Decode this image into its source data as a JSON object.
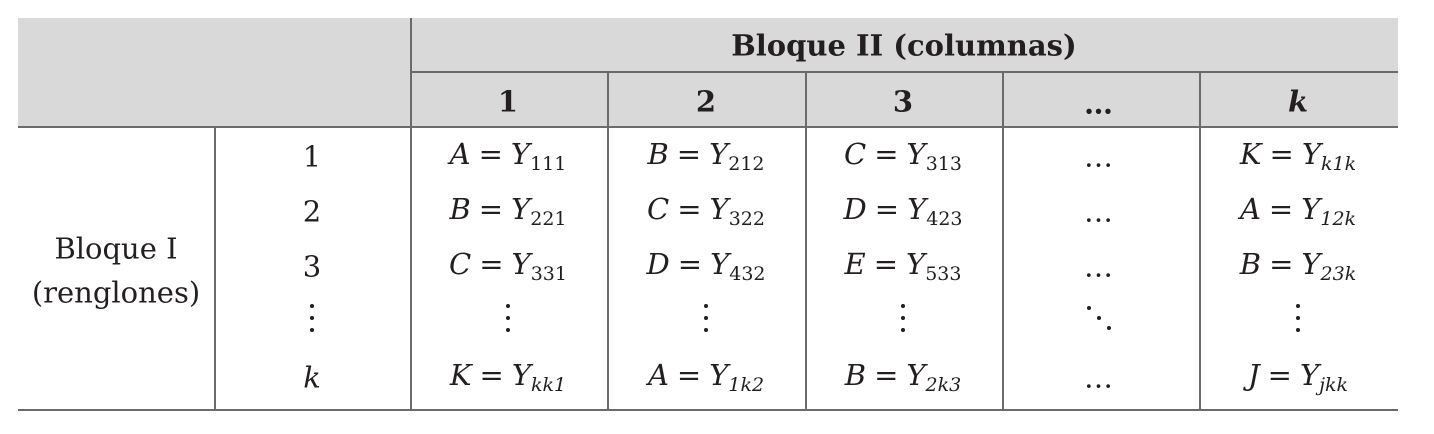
{
  "table": {
    "col_group_header": "Bloque II (columnas)",
    "row_group_header_line1": "Bloque I",
    "row_group_header_line2": "(renglones)",
    "col_headers": [
      "1",
      "2",
      "3",
      "…",
      "k"
    ],
    "row_labels": [
      "1",
      "2",
      "3",
      "⋮",
      "k"
    ],
    "rows": [
      [
        {
          "letter": "A",
          "base": "Y",
          "sub": "111"
        },
        {
          "letter": "B",
          "base": "Y",
          "sub": "212"
        },
        {
          "letter": "C",
          "base": "Y",
          "sub": "313"
        },
        {
          "ellipsis": "…"
        },
        {
          "letter": "K",
          "base": "Y",
          "sub": "k1k"
        }
      ],
      [
        {
          "letter": "B",
          "base": "Y",
          "sub": "221"
        },
        {
          "letter": "C",
          "base": "Y",
          "sub": "322"
        },
        {
          "letter": "D",
          "base": "Y",
          "sub": "423"
        },
        {
          "ellipsis": "…"
        },
        {
          "letter": "A",
          "base": "Y",
          "sub": "12k"
        }
      ],
      [
        {
          "letter": "C",
          "base": "Y",
          "sub": "331"
        },
        {
          "letter": "D",
          "base": "Y",
          "sub": "432"
        },
        {
          "letter": "E",
          "base": "Y",
          "sub": "533"
        },
        {
          "ellipsis": "…"
        },
        {
          "letter": "B",
          "base": "Y",
          "sub": "23k"
        }
      ],
      [
        {
          "vdots": "⋮"
        },
        {
          "vdots": "⋮"
        },
        {
          "vdots": "⋮"
        },
        {
          "ddots": "⋱"
        },
        {
          "vdots": "⋮"
        }
      ],
      [
        {
          "letter": "K",
          "base": "Y",
          "sub": "kk1"
        },
        {
          "letter": "A",
          "base": "Y",
          "sub": "1k2"
        },
        {
          "letter": "B",
          "base": "Y",
          "sub": "2k3"
        },
        {
          "ellipsis": "…"
        },
        {
          "letter": "J",
          "base": "Y",
          "sub": "jkk"
        }
      ]
    ]
  }
}
